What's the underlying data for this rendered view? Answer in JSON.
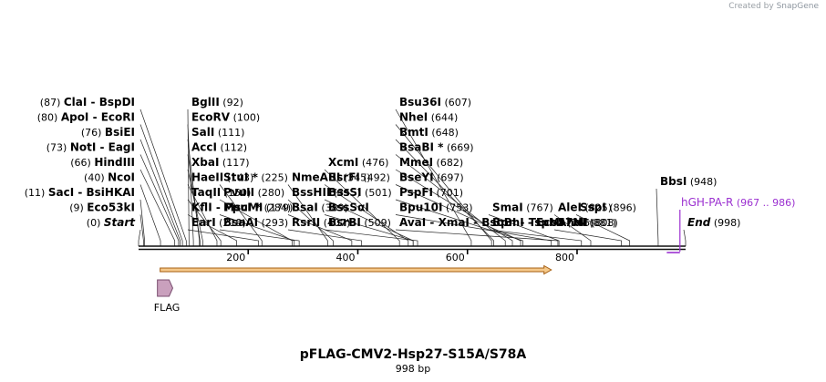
{
  "app": {
    "credit_prefix": "Created by",
    "credit_brand": "SnapGene"
  },
  "plasmid": {
    "name": "pFLAG-CMV2-Hsp27-S15A/S78A",
    "size_label": "998 bp",
    "length": 998
  },
  "axis": {
    "ticks": [
      {
        "value": 200,
        "label": "200"
      },
      {
        "value": 400,
        "label": "400"
      },
      {
        "value": 600,
        "label": "600"
      },
      {
        "value": 800,
        "label": "800"
      }
    ]
  },
  "colors": {
    "backbone": "#111111",
    "orf_fill": "#f5c98a",
    "orf_stroke": "#a65f12",
    "flag_fill": "#c9a0bd",
    "flag_stroke": "#7a4e70",
    "primer": "#9b30d0",
    "credit": "#9aa0a6"
  },
  "primer": {
    "name": "hGH-PA-R",
    "range": "(967 .. 986)",
    "start": 967,
    "end": 986
  },
  "orf": {
    "start": 41,
    "end": 753
  },
  "features": [
    {
      "name": "FLAG",
      "start": 41,
      "end": 64
    }
  ],
  "sites": {
    "left": [
      {
        "name": "Start",
        "pos": 0,
        "pos_label": "(0)",
        "italic": true
      },
      {
        "name": "Eco53kI",
        "pos": 9,
        "pos_label": "(9)"
      },
      {
        "name": "SacI  -  BsiHKAI",
        "pos": 11,
        "pos_label": "(11)"
      },
      {
        "name": "NcoI",
        "pos": 40,
        "pos_label": "(40)"
      },
      {
        "name": "HindIII",
        "pos": 66,
        "pos_label": "(66)"
      },
      {
        "name": "NotI  -  EagI",
        "pos": 73,
        "pos_label": "(73)"
      },
      {
        "name": "BsiEI",
        "pos": 76,
        "pos_label": "(76)"
      },
      {
        "name": "ApoI  -  EcoRI",
        "pos": 80,
        "pos_label": "(80)"
      },
      {
        "name": "ClaI  -  BspDI",
        "pos": 87,
        "pos_label": "(87)"
      }
    ],
    "right": [
      {
        "name": "BglII",
        "pos": 92,
        "pos_label": "(92)"
      },
      {
        "name": "EcoRV",
        "pos": 100,
        "pos_label": "(100)"
      },
      {
        "name": "SalI",
        "pos": 111,
        "pos_label": "(111)"
      },
      {
        "name": "AccI",
        "pos": 112,
        "pos_label": "(112)"
      },
      {
        "name": "XbaI",
        "pos": 117,
        "pos_label": "(117)"
      },
      {
        "name": "HaeII",
        "pos": 143,
        "pos_label": "(143)"
      },
      {
        "name": "TaqII",
        "pos": 150,
        "pos_label": "(150)"
      },
      {
        "name": "KflI  -  PpuMI",
        "pos": 179,
        "pos_label": "(179)"
      },
      {
        "name": "EarI",
        "pos": 219,
        "pos_label": "(219)"
      },
      {
        "name": "StuI *",
        "pos": 225,
        "pos_label": "(225)"
      },
      {
        "name": "PvuII",
        "pos": 280,
        "pos_label": "(280)"
      },
      {
        "name": "MscI *",
        "pos": 284,
        "pos_label": "(284)"
      },
      {
        "name": "BsaAI",
        "pos": 293,
        "pos_label": "(293)"
      },
      {
        "name": "NmeAIII",
        "pos": 345,
        "pos_label": "(345)"
      },
      {
        "name": "BssHII",
        "pos": 355,
        "pos_label": "(355)"
      },
      {
        "name": "BsaI",
        "pos": 389,
        "pos_label": "(389)"
      },
      {
        "name": "RsrII",
        "pos": 407,
        "pos_label": "(407)"
      },
      {
        "name": "XcmI",
        "pos": 476,
        "pos_label": "(476)"
      },
      {
        "name": "BsrFI",
        "pos": 492,
        "pos_label": "(492)"
      },
      {
        "name": "BssSI",
        "pos": 501,
        "pos_label": "(501)"
      },
      {
        "name": "BssSαI",
        "pos": 501,
        "pos_label": ""
      },
      {
        "name": "BsrBI",
        "pos": 509,
        "pos_label": "(509)"
      },
      {
        "name": "Bsu36I",
        "pos": 607,
        "pos_label": "(607)"
      },
      {
        "name": "NheI",
        "pos": 644,
        "pos_label": "(644)"
      },
      {
        "name": "BmtI",
        "pos": 648,
        "pos_label": "(648)"
      },
      {
        "name": "BsaBI *",
        "pos": 669,
        "pos_label": "(669)"
      },
      {
        "name": "MmeI",
        "pos": 682,
        "pos_label": "(682)"
      },
      {
        "name": "BseYI",
        "pos": 697,
        "pos_label": "(697)"
      },
      {
        "name": "PspFI",
        "pos": 701,
        "pos_label": "(701)"
      },
      {
        "name": "Bpu10I",
        "pos": 753,
        "pos_label": "(753)"
      },
      {
        "name": "AvaI  -  XmaI  -  BsoBI  -  TspMI",
        "pos": 765,
        "pos_label": "(765)"
      },
      {
        "name": "SmaI",
        "pos": 767,
        "pos_label": "(767)"
      },
      {
        "name": "BpmI  -  Eco57MI",
        "pos": 808,
        "pos_label": "(808)"
      },
      {
        "name": "AleI",
        "pos": 825,
        "pos_label": "(825)"
      },
      {
        "name": "AhdI",
        "pos": 881,
        "pos_label": "(881)"
      },
      {
        "name": "SspI",
        "pos": 896,
        "pos_label": "(896)"
      },
      {
        "name": "BbsI",
        "pos": 948,
        "pos_label": "(948)"
      },
      {
        "name": "End",
        "pos": 998,
        "pos_label": "(998)",
        "italic": true
      }
    ]
  }
}
